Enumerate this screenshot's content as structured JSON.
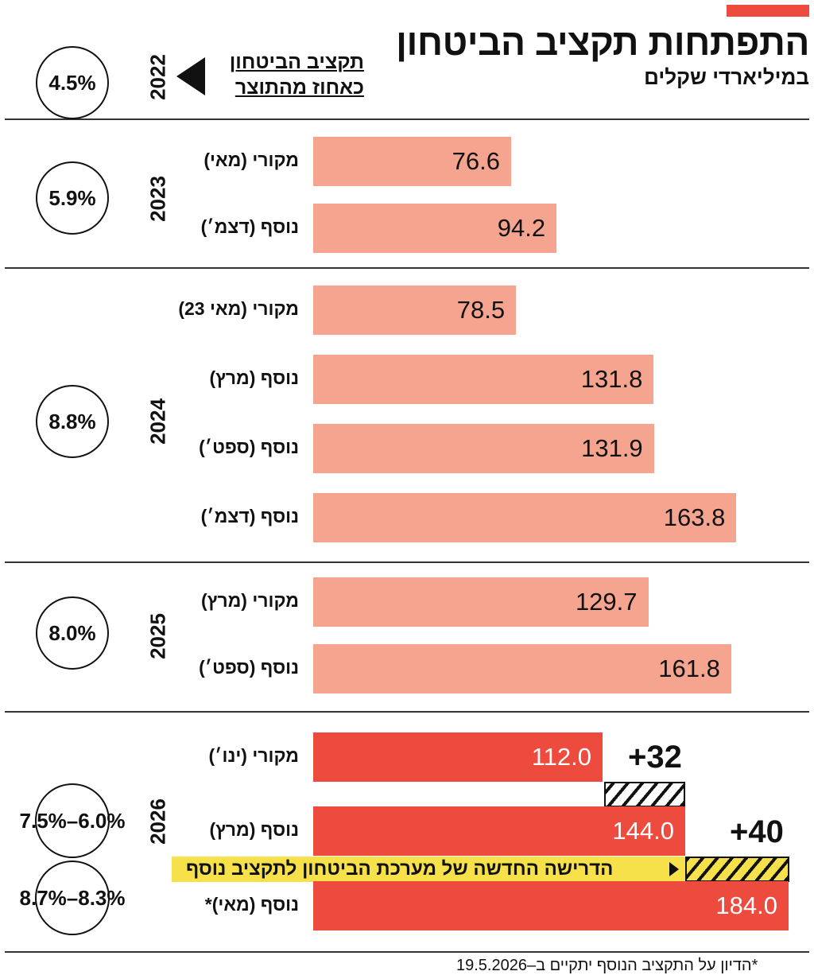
{
  "title": "התפתחות תקציב הביטחון",
  "subtitle": "במיליארדי שקלים",
  "legend": {
    "label_line1": "תקציב הביטחון",
    "label_line2": "כאחוז מהתוצר"
  },
  "colors": {
    "accent": "#ee4b3f",
    "bar_light": "#f5a48f",
    "bar_red": "#ee4b3f",
    "highlight": "#f6e14b",
    "text": "#111111"
  },
  "chart_data": {
    "type": "bar",
    "orientation": "horizontal",
    "title": "התפתחות תקציב הביטחון",
    "subtitle": "במיליארדי שקלים",
    "years": [
      {
        "year": "2022",
        "gdp_share": "4.5%",
        "bars": []
      },
      {
        "year": "2023",
        "gdp_share": "5.9%",
        "bars": [
          {
            "label": "מקורי (מאי)",
            "value": 76.6,
            "display": "76.6"
          },
          {
            "label": "נוסף (דצמ׳)",
            "value": 94.2,
            "display": "94.2"
          }
        ]
      },
      {
        "year": "2024",
        "gdp_share": "8.8%",
        "bars": [
          {
            "label": "מקורי (מאי 23)",
            "value": 78.5,
            "display": "78.5"
          },
          {
            "label": "נוסף (מרץ)",
            "value": 131.8,
            "display": "131.8"
          },
          {
            "label": "נוסף (ספט׳)",
            "value": 131.9,
            "display": "131.9"
          },
          {
            "label": "נוסף (דצמ׳)",
            "value": 163.8,
            "display": "163.8"
          }
        ]
      },
      {
        "year": "2025",
        "gdp_share": "8.0%",
        "bars": [
          {
            "label": "מקורי (מרץ)",
            "value": 129.7,
            "display": "129.7"
          },
          {
            "label": "נוסף (ספט׳)",
            "value": 161.8,
            "display": "161.8"
          }
        ]
      },
      {
        "year": "2026",
        "gdp_share": [
          "7.5%–6.0%",
          "8.7%–8.3%"
        ],
        "bars": [
          {
            "label": "מקורי (ינו׳)",
            "value": 112.0,
            "display": "112.0"
          },
          {
            "label": "נוסף (מרץ)",
            "value": 144.0,
            "display": "144.0"
          },
          {
            "label": "נוסף (מאי)*",
            "value": 184.0,
            "display": "184.0"
          }
        ]
      }
    ],
    "increments": [
      {
        "label": "+32"
      },
      {
        "label": "+40"
      }
    ],
    "annotation": "הדרישה החדשה של מערכת הביטחון לתקציב נוסף"
  },
  "footnote": "*הדיון על התקציב הנוסף יתקיים ב–19.5.2026"
}
